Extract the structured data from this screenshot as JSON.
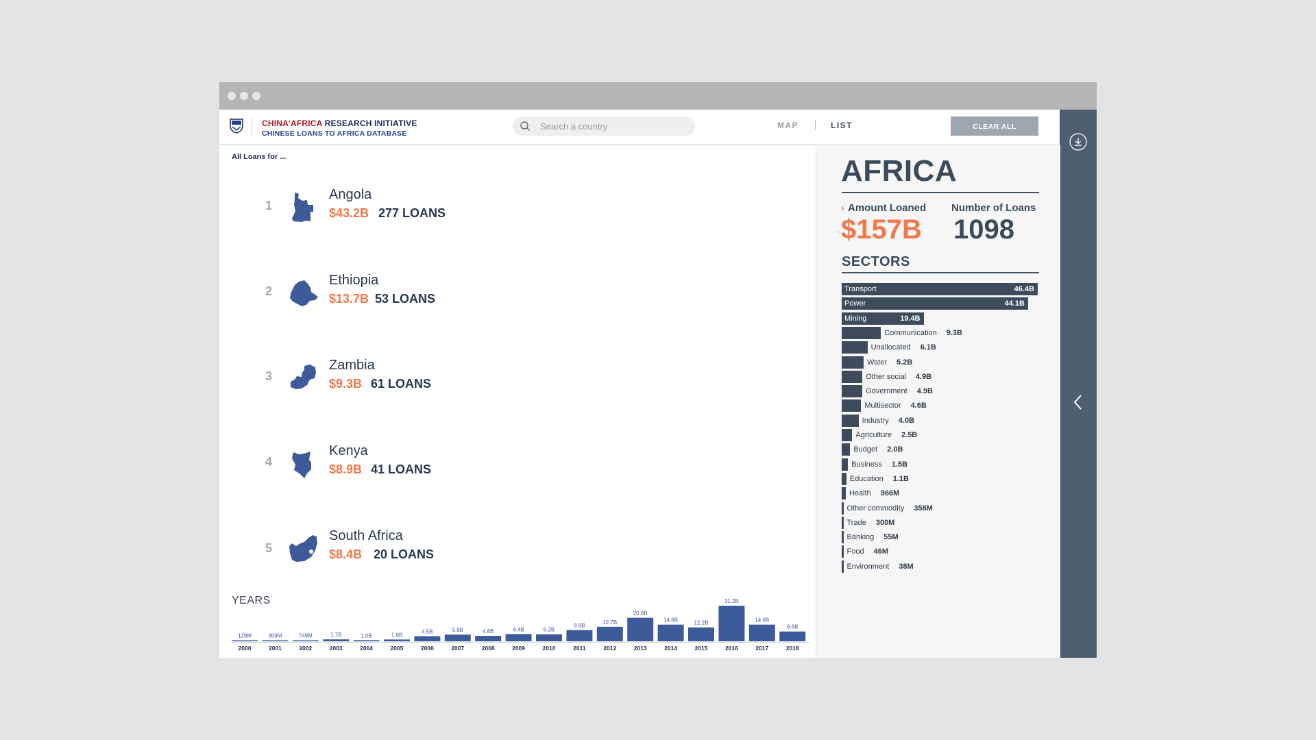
{
  "header": {
    "logo_line1_part1": "CHINA",
    "logo_line1_part2": "AFRICA",
    "logo_line1_part3": " RESEARCH INITIATIVE",
    "logo_line2": "CHINESE LOANS TO AFRICA DATABASE",
    "search_placeholder": "Search a country",
    "nav_map": "MAP",
    "nav_list": "LIST",
    "clear_all": "CLEAR ALL"
  },
  "list": {
    "title": "All Loans for ...",
    "countries": [
      {
        "rank": "1",
        "name": "Angola",
        "amount": "$43.2B",
        "loans": "277 LOANS"
      },
      {
        "rank": "2",
        "name": "Ethiopia",
        "amount": "$13.7B",
        "loans": "53 LOANS"
      },
      {
        "rank": "3",
        "name": "Zambia",
        "amount": "$9.3B",
        "loans": "61 LOANS"
      },
      {
        "rank": "4",
        "name": "Kenya",
        "amount": "$8.9B",
        "loans": "41 LOANS"
      },
      {
        "rank": "5",
        "name": "South Africa",
        "amount": "$8.4B",
        "loans": "20 LOANS"
      }
    ]
  },
  "years": {
    "title": "YEARS",
    "chart_data": {
      "type": "bar",
      "categories": [
        "2000",
        "2001",
        "2002",
        "2003",
        "2004",
        "2005",
        "2006",
        "2007",
        "2008",
        "2009",
        "2010",
        "2011",
        "2012",
        "2013",
        "2014",
        "2015",
        "2016",
        "2017",
        "2018"
      ],
      "values": [
        0.129,
        0.309,
        0.749,
        1.7,
        1.0,
        1.6,
        4.5,
        5.9,
        4.8,
        6.4,
        6.2,
        9.9,
        12.7,
        20.6,
        14.6,
        12.2,
        31.2,
        14.6,
        8.6
      ],
      "labels": [
        "129M",
        "309M",
        "749M",
        "1.7B",
        "1.0B",
        "1.6B",
        "4.5B",
        "5.9B",
        "4.8B",
        "6.4B",
        "6.2B",
        "9.9B",
        "12.7B",
        "20.6B",
        "14.6B",
        "12.2B",
        "31.2B",
        "14.6B",
        "8.6B"
      ],
      "unit": "billion USD",
      "color": "#3d5a99"
    }
  },
  "summary": {
    "region": "AFRICA",
    "amount_label": "Amount Loaned",
    "amount_value": "$157B",
    "count_label": "Number of Loans",
    "count_value": "1098",
    "sectors_title": "SECTORS",
    "chart_data": {
      "type": "bar",
      "orientation": "horizontal",
      "categories": [
        "Transport",
        "Power",
        "Mining",
        "Communication",
        "Unallocated",
        "Water",
        "Other social",
        "Government",
        "Multisector",
        "Industry",
        "Agriculture",
        "Budget",
        "Business",
        "Education",
        "Health",
        "Other commodity",
        "Trade",
        "Banking",
        "Food",
        "Environment"
      ],
      "values": [
        46.4,
        44.1,
        19.4,
        9.3,
        6.1,
        5.2,
        4.9,
        4.9,
        4.6,
        4.0,
        2.5,
        2.0,
        1.5,
        1.1,
        0.966,
        0.358,
        0.3,
        0.055,
        0.046,
        0.038
      ],
      "labels": [
        "46.4B",
        "44.1B",
        "19.4B",
        "9.3B",
        "6.1B",
        "5.2B",
        "4.9B",
        "4.9B",
        "4.6B",
        "4.0B",
        "2.5B",
        "2.0B",
        "1.5B",
        "1.1B",
        "966M",
        "358M",
        "300M",
        "55M",
        "46M",
        "38M"
      ],
      "unit": "billion USD",
      "color": "#3d4c5c"
    }
  },
  "colors": {
    "accent": "#f2784b",
    "navy": "#3a4b5c",
    "map_blue": "#3d5a99",
    "sidebar": "#4d5e6f"
  },
  "icons": {
    "logo": "sais-shield-icon",
    "search": "search-icon",
    "download": "download-icon",
    "collapse": "chevron-left-icon"
  }
}
